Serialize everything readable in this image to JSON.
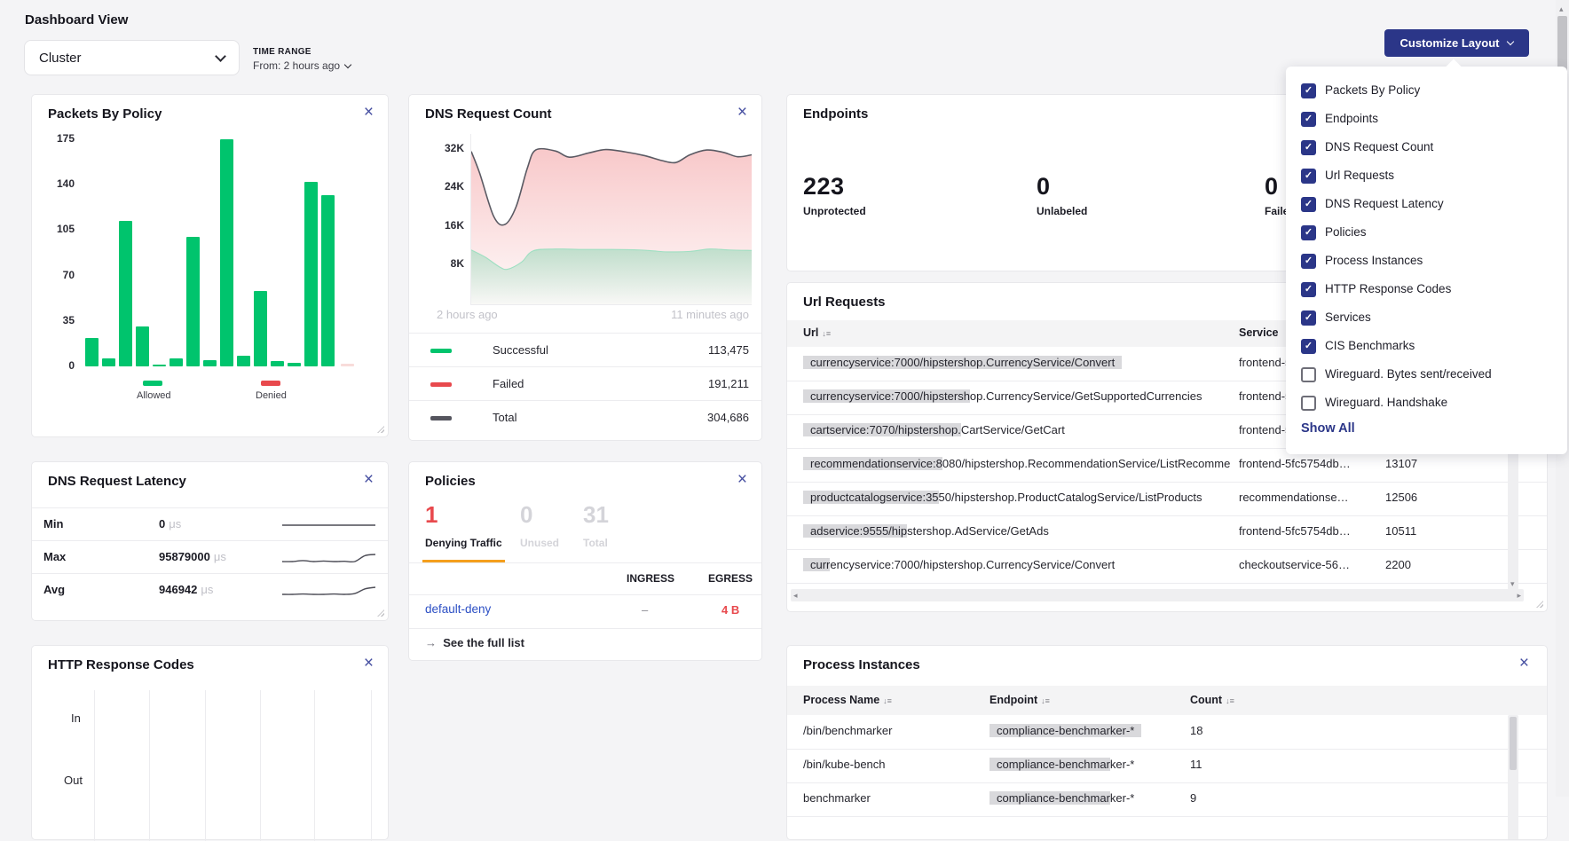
{
  "app": {
    "title": "Dashboard View"
  },
  "toolbar": {
    "view_select": "Cluster",
    "time_range_label": "TIME RANGE",
    "time_range_value": "From: 2 hours ago",
    "customize_label": "Customize Layout"
  },
  "customize_menu": {
    "show_all": "Show All",
    "items": [
      {
        "label": "Packets By Policy",
        "checked": true
      },
      {
        "label": "Endpoints",
        "checked": true
      },
      {
        "label": "DNS Request Count",
        "checked": true
      },
      {
        "label": "Url Requests",
        "checked": true
      },
      {
        "label": "DNS Request Latency",
        "checked": true
      },
      {
        "label": "Policies",
        "checked": true
      },
      {
        "label": "Process Instances",
        "checked": true
      },
      {
        "label": "HTTP Response Codes",
        "checked": true
      },
      {
        "label": "Services",
        "checked": true
      },
      {
        "label": "CIS Benchmarks",
        "checked": true
      },
      {
        "label": "Wireguard. Bytes sent/received",
        "checked": false
      },
      {
        "label": "Wireguard. Handshake",
        "checked": false
      }
    ]
  },
  "packets_card": {
    "title": "Packets By Policy",
    "chart_data": {
      "type": "bar",
      "yticks": [
        175,
        140,
        105,
        70,
        35,
        0
      ],
      "ylim": [
        0,
        175
      ],
      "series": [
        {
          "name": "Allowed",
          "color": "#00c46d",
          "values": [
            22,
            6,
            112,
            31,
            1,
            6,
            100,
            5,
            175,
            8,
            58,
            4,
            3,
            142,
            132
          ]
        },
        {
          "name": "Denied",
          "color": "#f8dcda",
          "values": [
            2
          ]
        }
      ],
      "legend": [
        {
          "label": "Allowed",
          "color": "#00c46d"
        },
        {
          "label": "Denied",
          "color": "#e8494d"
        }
      ]
    }
  },
  "dns_card": {
    "title": "DNS Request Count",
    "chart_data": {
      "type": "area",
      "yticks": [
        {
          "label": "32K",
          "value": 32000
        },
        {
          "label": "24K",
          "value": 24000
        },
        {
          "label": "16K",
          "value": 16000
        },
        {
          "label": "8K",
          "value": 8000
        }
      ],
      "ylim": [
        0,
        35000
      ],
      "x_start": "2 hours ago",
      "x_end": "11 minutes ago",
      "series": [
        {
          "name": "Total",
          "stroke": "#5a5a63",
          "fill": "#e8494d",
          "points": [
            [
              0,
              31500
            ],
            [
              0.03,
              27000
            ],
            [
              0.08,
              18000
            ],
            [
              0.12,
              16300
            ],
            [
              0.16,
              20000
            ],
            [
              0.2,
              28000
            ],
            [
              0.23,
              31800
            ],
            [
              0.3,
              31600
            ],
            [
              0.35,
              30300
            ],
            [
              0.42,
              31200
            ],
            [
              0.48,
              31900
            ],
            [
              0.55,
              31400
            ],
            [
              0.62,
              30600
            ],
            [
              0.68,
              29600
            ],
            [
              0.73,
              29200
            ],
            [
              0.78,
              30800
            ],
            [
              0.84,
              31800
            ],
            [
              0.9,
              31300
            ],
            [
              0.95,
              30400
            ],
            [
              1,
              30800
            ]
          ]
        },
        {
          "name": "Successful",
          "stroke": "#9fdfc2",
          "fill": "#35c98b",
          "points": [
            [
              0,
              11000
            ],
            [
              0.05,
              9500
            ],
            [
              0.1,
              7500
            ],
            [
              0.13,
              7000
            ],
            [
              0.18,
              8500
            ],
            [
              0.22,
              10800
            ],
            [
              0.3,
              11200
            ],
            [
              0.4,
              11100
            ],
            [
              0.5,
              11100
            ],
            [
              0.6,
              11000
            ],
            [
              0.65,
              10800
            ],
            [
              0.7,
              10600
            ],
            [
              0.78,
              10700
            ],
            [
              0.85,
              11200
            ],
            [
              0.92,
              11000
            ],
            [
              1,
              10900
            ]
          ]
        }
      ]
    },
    "legend": [
      {
        "label": "Successful",
        "value": "113,475",
        "color": "#00c46d"
      },
      {
        "label": "Failed",
        "value": "191,211",
        "color": "#e8494d"
      },
      {
        "label": "Total",
        "value": "304,686",
        "color": "#55555e"
      }
    ]
  },
  "endpoints_card": {
    "title": "Endpoints",
    "stats": [
      {
        "value": "223",
        "label": "Unprotected"
      },
      {
        "value": "0",
        "label": "Unlabeled"
      },
      {
        "value": "0",
        "label": "Failed"
      }
    ]
  },
  "url_card": {
    "title": "Url Requests",
    "url_header": "Url",
    "service_header": "Service",
    "rows": [
      {
        "url_hl": "currencyservice:7000/hipstershop.CurrencyService/Convert",
        "url_rest": "",
        "service": "frontend-5fc5754db…",
        "count": ""
      },
      {
        "url_hl": "currencyservice:7000/hipstersh",
        "url_rest": "op.CurrencyService/GetSupportedCurrencies",
        "service": "frontend-5fc5754db…",
        "count": ""
      },
      {
        "url_hl": "cartservice:7070/hipstershop.",
        "url_rest": "CartService/GetCart",
        "service": "frontend-5fc5754db…",
        "count": ""
      },
      {
        "url_hl": "recommendationservice:8",
        "url_rest": "080/hipstershop.RecommendationService/ListRecomme",
        "service": "frontend-5fc5754db…",
        "count": "13107"
      },
      {
        "url_hl": "productcatalogservice:35",
        "url_rest": "50/hipstershop.ProductCatalogService/ListProducts",
        "service": "recommendationse…",
        "count": "12506"
      },
      {
        "url_hl": "adservice:9555/hip",
        "url_rest": "stershop.AdService/GetAds",
        "service": "frontend-5fc5754db…",
        "count": "10511"
      },
      {
        "url_hl": "curr",
        "url_rest": "encyservice:7000/hipstershop.CurrencyService/Convert",
        "service": "checkoutservice-56…",
        "count": "2200"
      }
    ]
  },
  "latency_card": {
    "title": "DNS Request Latency",
    "unit": "μs",
    "rows": [
      {
        "label": "Min",
        "value": "0",
        "spark": [
          1,
          1,
          1,
          1,
          1,
          1,
          1,
          1
        ]
      },
      {
        "label": "Max",
        "value": "95879000",
        "spark": [
          2,
          2,
          2.4,
          2,
          2.2,
          2,
          2.1,
          2,
          4.5,
          5
        ]
      },
      {
        "label": "Avg",
        "value": "946942",
        "spark": [
          1.2,
          1.2,
          1.3,
          1.2,
          1.2,
          1.3,
          1.2,
          1.4,
          2.6,
          3
        ]
      }
    ]
  },
  "policies_card": {
    "title": "Policies",
    "stats": [
      {
        "value": "1",
        "label": "Denying Traffic",
        "state": "active"
      },
      {
        "value": "0",
        "label": "Unused",
        "state": "muted"
      },
      {
        "value": "31",
        "label": "Total",
        "state": "muted"
      }
    ],
    "ingress_header": "INGRESS",
    "egress_header": "EGRESS",
    "rows": [
      {
        "name": "default-deny",
        "ingress": "–",
        "egress": "4 B"
      }
    ],
    "see_full_list": "See the full list"
  },
  "http_card": {
    "title": "HTTP Response Codes",
    "row_labels": [
      "In",
      "Out"
    ]
  },
  "process_card": {
    "title": "Process Instances",
    "columns": {
      "name": "Process Name",
      "endpoint": "Endpoint",
      "count": "Count"
    },
    "rows": [
      {
        "name": "/bin/benchmarker",
        "endpoint_hl": "compliance-benchmarker-*",
        "endpoint_rest": "",
        "count": "18"
      },
      {
        "name": "/bin/kube-bench",
        "endpoint_hl": "compliance-benchmar",
        "endpoint_rest": "ker-*",
        "count": "11"
      },
      {
        "name": "benchmarker",
        "endpoint_hl": "compliance-benchmar",
        "endpoint_rest": "ker-*",
        "count": "9"
      }
    ]
  },
  "colors": {
    "accent_navy": "#2b3688",
    "green": "#00c46d",
    "red": "#e8494d",
    "orange": "#f59f1d",
    "link_blue": "#2c4fc4"
  }
}
